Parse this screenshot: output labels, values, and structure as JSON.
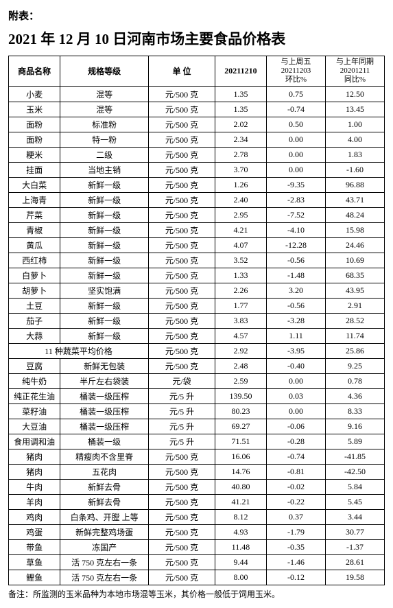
{
  "header_label": "附表：",
  "title": "2021 年 12 月 10 日河南市场主要食品价格表",
  "columns": {
    "name": "商品名称",
    "spec": "规格等级",
    "unit": "单 位",
    "date": "20211210",
    "wow_top": "与上周五",
    "wow_date": "20211203",
    "wow_label": "环比%",
    "yoy_top": "与上年同期",
    "yoy_date": "20201211",
    "yoy_label": "同比%"
  },
  "rows": [
    {
      "name": "小麦",
      "spec": "混等",
      "unit": "元/500 克",
      "price": "1.35",
      "wow": "0.75",
      "yoy": "12.50"
    },
    {
      "name": "玉米",
      "spec": "混等",
      "unit": "元/500 克",
      "price": "1.35",
      "wow": "-0.74",
      "yoy": "13.45"
    },
    {
      "name": "面粉",
      "spec": "标准粉",
      "unit": "元/500 克",
      "price": "2.02",
      "wow": "0.50",
      "yoy": "1.00"
    },
    {
      "name": "面粉",
      "spec": "特一粉",
      "unit": "元/500 克",
      "price": "2.34",
      "wow": "0.00",
      "yoy": "4.00"
    },
    {
      "name": "粳米",
      "spec": "二级",
      "unit": "元/500 克",
      "price": "2.78",
      "wow": "0.00",
      "yoy": "1.83"
    },
    {
      "name": "挂面",
      "spec": "当地主销",
      "unit": "元/500 克",
      "price": "3.70",
      "wow": "0.00",
      "yoy": "-1.60"
    },
    {
      "name": "大白菜",
      "spec": "新鲜一级",
      "unit": "元/500 克",
      "price": "1.26",
      "wow": "-9.35",
      "yoy": "96.88"
    },
    {
      "name": "上海青",
      "spec": "新鲜一级",
      "unit": "元/500 克",
      "price": "2.40",
      "wow": "-2.83",
      "yoy": "43.71"
    },
    {
      "name": "芹菜",
      "spec": "新鲜一级",
      "unit": "元/500 克",
      "price": "2.95",
      "wow": "-7.52",
      "yoy": "48.24"
    },
    {
      "name": "青椒",
      "spec": "新鲜一级",
      "unit": "元/500 克",
      "price": "4.21",
      "wow": "-4.10",
      "yoy": "15.98"
    },
    {
      "name": "黄瓜",
      "spec": "新鲜一级",
      "unit": "元/500 克",
      "price": "4.07",
      "wow": "-12.28",
      "yoy": "24.46"
    },
    {
      "name": "西红柿",
      "spec": "新鲜一级",
      "unit": "元/500 克",
      "price": "3.52",
      "wow": "-0.56",
      "yoy": "10.69"
    },
    {
      "name": "白萝卜",
      "spec": "新鲜一级",
      "unit": "元/500 克",
      "price": "1.33",
      "wow": "-1.48",
      "yoy": "68.35"
    },
    {
      "name": "胡萝卜",
      "spec": "坚实饱满",
      "unit": "元/500 克",
      "price": "2.26",
      "wow": "3.20",
      "yoy": "43.95"
    },
    {
      "name": "土豆",
      "spec": "新鲜一级",
      "unit": "元/500 克",
      "price": "1.77",
      "wow": "-0.56",
      "yoy": "2.91"
    },
    {
      "name": "茄子",
      "spec": "新鲜一级",
      "unit": "元/500 克",
      "price": "3.83",
      "wow": "-3.28",
      "yoy": "28.52"
    },
    {
      "name": "大蒜",
      "spec": "新鲜一级",
      "unit": "元/500 克",
      "price": "4.57",
      "wow": "1.11",
      "yoy": "11.74"
    }
  ],
  "avg_row": {
    "label": "11 种蔬菜平均价格",
    "unit": "元/500 克",
    "price": "2.92",
    "wow": "-3.95",
    "yoy": "25.86"
  },
  "rows2": [
    {
      "name": "豆腐",
      "spec": "新鲜无包装",
      "unit": "元/500 克",
      "price": "2.48",
      "wow": "-0.40",
      "yoy": "9.25"
    },
    {
      "name": "纯牛奶",
      "spec": "半斤左右袋装",
      "unit": "元/袋",
      "price": "2.59",
      "wow": "0.00",
      "yoy": "0.78"
    },
    {
      "name": "纯正花生油",
      "spec": "桶装一级压榨",
      "unit": "元/5 升",
      "price": "139.50",
      "wow": "0.03",
      "yoy": "4.36"
    },
    {
      "name": "菜籽油",
      "spec": "桶装一级压榨",
      "unit": "元/5 升",
      "price": "80.23",
      "wow": "0.00",
      "yoy": "8.33"
    },
    {
      "name": "大豆油",
      "spec": "桶装一级压榨",
      "unit": "元/5 升",
      "price": "69.27",
      "wow": "-0.06",
      "yoy": "9.16"
    },
    {
      "name": "食用调和油",
      "spec": "桶装一级",
      "unit": "元/5 升",
      "price": "71.51",
      "wow": "-0.28",
      "yoy": "5.89"
    },
    {
      "name": "猪肉",
      "spec": "精瘦肉不含里脊",
      "unit": "元/500 克",
      "price": "16.06",
      "wow": "-0.74",
      "yoy": "-41.85"
    },
    {
      "name": "猪肉",
      "spec": "五花肉",
      "unit": "元/500 克",
      "price": "14.76",
      "wow": "-0.81",
      "yoy": "-42.50"
    },
    {
      "name": "牛肉",
      "spec": "新鲜去骨",
      "unit": "元/500 克",
      "price": "40.80",
      "wow": "-0.02",
      "yoy": "5.84"
    },
    {
      "name": "羊肉",
      "spec": "新鲜去骨",
      "unit": "元/500 克",
      "price": "41.21",
      "wow": "-0.22",
      "yoy": "5.45"
    },
    {
      "name": "鸡肉",
      "spec": "白条鸡、开膛 上等",
      "unit": "元/500 克",
      "price": "8.12",
      "wow": "0.37",
      "yoy": "3.44"
    },
    {
      "name": "鸡蛋",
      "spec": "新鲜完整鸡场蛋",
      "unit": "元/500 克",
      "price": "4.93",
      "wow": "-1.79",
      "yoy": "30.77"
    },
    {
      "name": "带鱼",
      "spec": "冻国产",
      "unit": "元/500 克",
      "price": "11.48",
      "wow": "-0.35",
      "yoy": "-1.37"
    },
    {
      "name": "草鱼",
      "spec": "活 750 克左右一条",
      "unit": "元/500 克",
      "price": "9.44",
      "wow": "-1.46",
      "yoy": "28.61"
    },
    {
      "name": "鲤鱼",
      "spec": "活 750 克左右一条",
      "unit": "元/500 克",
      "price": "8.00",
      "wow": "-0.12",
      "yoy": "19.58"
    }
  ],
  "footnote": "备注：所监测的玉米品种为本地市场混等玉米，其价格一般低于饲用玉米。"
}
